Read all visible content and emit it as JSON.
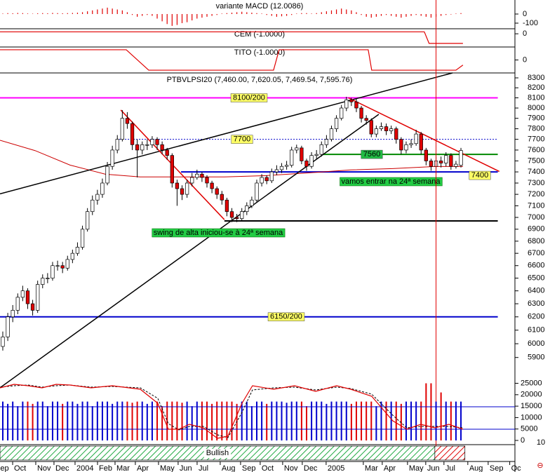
{
  "chart_data": [
    {
      "type": "bar",
      "title": "variante MACD (12.0086)",
      "color": "#e00000",
      "values": [
        5,
        10,
        8,
        12,
        10,
        6,
        4,
        8,
        10,
        8,
        12,
        10,
        8,
        10,
        12,
        15,
        20,
        30,
        40,
        50,
        60,
        70,
        60,
        50,
        40,
        20,
        -10,
        -30,
        -20,
        -10,
        -20,
        -50,
        -80,
        -110,
        -130,
        -120,
        -100,
        -90,
        -70,
        -50,
        -40,
        -30,
        -20,
        -10,
        5,
        10,
        15,
        20,
        25,
        20,
        15,
        10,
        5,
        -10,
        -20,
        -30,
        -25,
        -20,
        -10,
        5,
        10,
        10,
        5,
        10,
        20,
        30,
        40,
        50,
        60,
        50,
        40,
        20,
        -10,
        -30,
        -40,
        -30,
        -20,
        -10,
        -20,
        -30,
        -40,
        -30,
        -20,
        -10,
        -20,
        -30,
        -40,
        -30,
        -20,
        -10,
        -5,
        5,
        10
      ],
      "ylim": [
        -154,
        154
      ],
      "yticks": [
        0,
        -100
      ]
    },
    {
      "type": "line",
      "title": "CEM (-1.0000)",
      "color": "#e00000",
      "x": [
        -0.56,
        84.65,
        85.6,
        92.4
      ],
      "values": [
        0.2,
        0.2,
        -1,
        -1
      ],
      "ylim": [
        -1.3,
        0.45
      ],
      "yticks": [
        0
      ]
    },
    {
      "type": "line",
      "title": "TITO (-1.0000)",
      "color": "#e00000",
      "x": [
        -0.56,
        24.79,
        29.3,
        54.37,
        55.49,
        73.38,
        74.08,
        90.99,
        92.4
      ],
      "values": [
        1,
        1,
        -1,
        -1,
        1,
        1,
        -1,
        -1,
        -0.5
      ],
      "ylim": [
        -1.2,
        1.2
      ],
      "yticks": [
        0
      ]
    },
    {
      "type": "candlestick",
      "title": "PTBVLPSI20 (7,460.00, 7,620.05, 7,469.54, 7,595.76)",
      "up_color": "#ffffff",
      "down_color": "#e00000",
      "log_scale": true,
      "candles": [
        [
          5980,
          6090,
          5950,
          6050
        ],
        [
          6050,
          6230,
          6020,
          6200
        ],
        [
          6200,
          6290,
          6160,
          6250
        ],
        [
          6250,
          6380,
          6220,
          6350
        ],
        [
          6350,
          6440,
          6320,
          6400
        ],
        [
          6400,
          6420,
          6260,
          6300
        ],
        [
          6300,
          6330,
          6210,
          6250
        ],
        [
          6250,
          6480,
          6230,
          6450
        ],
        [
          6450,
          6530,
          6420,
          6500
        ],
        [
          6500,
          6540,
          6460,
          6500
        ],
        [
          6500,
          6630,
          6480,
          6600
        ],
        [
          6600,
          6640,
          6560,
          6600
        ],
        [
          6600,
          6630,
          6540,
          6580
        ],
        [
          6580,
          6680,
          6560,
          6650
        ],
        [
          6650,
          6730,
          6620,
          6700
        ],
        [
          6700,
          6790,
          6680,
          6750
        ],
        [
          6750,
          6930,
          6730,
          6900
        ],
        [
          6900,
          7080,
          6880,
          7050
        ],
        [
          7050,
          7190,
          7020,
          7150
        ],
        [
          7150,
          7240,
          7110,
          7200
        ],
        [
          7200,
          7340,
          7170,
          7300
        ],
        [
          7300,
          7490,
          7280,
          7450
        ],
        [
          7450,
          7640,
          7420,
          7600
        ],
        [
          7600,
          7740,
          7570,
          7700
        ],
        [
          7700,
          7980,
          7680,
          7900
        ],
        [
          7900,
          7960,
          7800,
          7850
        ],
        [
          7850,
          7870,
          7600,
          7650
        ],
        [
          7650,
          7700,
          7350,
          7600
        ],
        [
          7600,
          7680,
          7560,
          7650
        ],
        [
          7650,
          7700,
          7600,
          7650
        ],
        [
          7650,
          7730,
          7620,
          7700
        ],
        [
          7700,
          7720,
          7600,
          7650
        ],
        [
          7650,
          7680,
          7560,
          7600
        ],
        [
          7600,
          7620,
          7510,
          7550
        ],
        [
          7550,
          7570,
          7260,
          7300
        ],
        [
          7300,
          7330,
          7100,
          7250
        ],
        [
          7250,
          7280,
          7150,
          7200
        ],
        [
          7200,
          7330,
          7170,
          7300
        ],
        [
          7300,
          7390,
          7270,
          7350
        ],
        [
          7350,
          7420,
          7330,
          7380
        ],
        [
          7380,
          7400,
          7310,
          7350
        ],
        [
          7350,
          7370,
          7260,
          7300
        ],
        [
          7300,
          7320,
          7210,
          7250
        ],
        [
          7250,
          7270,
          7160,
          7200
        ],
        [
          7200,
          7230,
          7110,
          7150
        ],
        [
          7150,
          7170,
          7010,
          7050
        ],
        [
          7050,
          7080,
          6960,
          7000
        ],
        [
          7000,
          7030,
          6960,
          6990
        ],
        [
          6990,
          7080,
          6970,
          7050
        ],
        [
          7050,
          7130,
          7020,
          7100
        ],
        [
          7100,
          7180,
          7080,
          7150
        ],
        [
          7150,
          7330,
          7130,
          7300
        ],
        [
          7300,
          7380,
          7270,
          7350
        ],
        [
          7350,
          7370,
          7290,
          7320
        ],
        [
          7320,
          7430,
          7300,
          7400
        ],
        [
          7400,
          7460,
          7370,
          7420
        ],
        [
          7420,
          7480,
          7390,
          7450
        ],
        [
          7450,
          7500,
          7420,
          7460
        ],
        [
          7460,
          7630,
          7440,
          7600
        ],
        [
          7600,
          7650,
          7570,
          7620
        ],
        [
          7620,
          7640,
          7470,
          7500
        ],
        [
          7500,
          7520,
          7410,
          7450
        ],
        [
          7450,
          7580,
          7430,
          7550
        ],
        [
          7550,
          7600,
          7520,
          7560
        ],
        [
          7560,
          7680,
          7540,
          7650
        ],
        [
          7650,
          7740,
          7620,
          7700
        ],
        [
          7700,
          7830,
          7680,
          7800
        ],
        [
          7800,
          7930,
          7770,
          7900
        ],
        [
          7900,
          8030,
          7880,
          8000
        ],
        [
          8000,
          8110,
          7970,
          8080
        ],
        [
          8080,
          8100,
          8020,
          8060
        ],
        [
          8060,
          8090,
          7960,
          8000
        ],
        [
          8000,
          8020,
          7860,
          7900
        ],
        [
          7900,
          7930,
          7840,
          7880
        ],
        [
          7880,
          7900,
          7720,
          7750
        ],
        [
          7750,
          7830,
          7720,
          7800
        ],
        [
          7800,
          7860,
          7780,
          7820
        ],
        [
          7820,
          7850,
          7740,
          7780
        ],
        [
          7780,
          7830,
          7750,
          7800
        ],
        [
          7800,
          7820,
          7660,
          7700
        ],
        [
          7700,
          7720,
          7560,
          7600
        ],
        [
          7600,
          7680,
          7570,
          7650
        ],
        [
          7650,
          7700,
          7620,
          7660
        ],
        [
          7660,
          7790,
          7640,
          7750
        ],
        [
          7750,
          7770,
          7560,
          7600
        ],
        [
          7600,
          7620,
          7460,
          7500
        ],
        [
          7500,
          7520,
          7410,
          7450
        ],
        [
          7450,
          7540,
          7430,
          7500
        ],
        [
          7500,
          7540,
          7440,
          7480
        ],
        [
          7480,
          7580,
          7450,
          7550
        ],
        [
          7550,
          7570,
          7420,
          7450
        ],
        [
          7450,
          7500,
          7430,
          7470
        ],
        [
          7460,
          7620.05,
          7440,
          7595.76
        ]
      ],
      "ylim": [
        5700,
        8350
      ],
      "yticks": [
        5900,
        6000,
        6100,
        6200,
        6300,
        6400,
        6500,
        6600,
        6700,
        6800,
        6900,
        7000,
        7100,
        7200,
        7300,
        7400,
        7500,
        7600,
        7700,
        7800,
        7900,
        8000,
        8100,
        8200,
        8300
      ],
      "xlim": [
        -0.56,
        102.7
      ],
      "xticks": [
        {
          "value": -1.83,
          "label": "Sep"
        },
        {
          "value": 1.98,
          "label": "Oct"
        },
        {
          "value": 6.62,
          "label": "Nov"
        },
        {
          "value": 10.28,
          "label": "Dec"
        },
        {
          "value": 14.51,
          "label": "2004"
        },
        {
          "value": 19.02,
          "label": "Feb"
        },
        {
          "value": 22.54,
          "label": "Mar"
        },
        {
          "value": 26.62,
          "label": "Apr"
        },
        {
          "value": 31.27,
          "label": "May"
        },
        {
          "value": 35.21,
          "label": "Jun"
        },
        {
          "value": 39.02,
          "label": "Jul"
        },
        {
          "value": 43.66,
          "label": "Aug"
        },
        {
          "value": 47.75,
          "label": "Sep"
        },
        {
          "value": 51.69,
          "label": "Oct"
        },
        {
          "value": 56.2,
          "label": "Nov"
        },
        {
          "value": 60.14,
          "label": "Dec"
        },
        {
          "value": 64.93,
          "label": "2005"
        },
        {
          "value": 72.4,
          "label": "Mar"
        },
        {
          "value": 76.2,
          "label": "Apr"
        },
        {
          "value": 81.27,
          "label": "May"
        },
        {
          "value": 84.93,
          "label": "Jun"
        },
        {
          "value": 88.59,
          "label": "Jul"
        },
        {
          "value": 93.38,
          "label": "Aug"
        },
        {
          "value": 97.47,
          "label": "Sep"
        },
        {
          "value": 101.8,
          "label": "Oc"
        }
      ],
      "moving_average": {
        "color": "#cc0000",
        "x": [
          -0.56,
          6.48,
          13.5,
          20.6,
          27.6,
          36.1,
          44.5,
          53,
          61.4,
          69.9,
          78.3,
          86.8,
          92.4
        ],
        "values": [
          7691,
          7595,
          7462,
          7379,
          7355,
          7355,
          7355,
          7367,
          7391,
          7418,
          7430,
          7449,
          7449
        ]
      },
      "levels": [
        {
          "value": 8100,
          "label": "8100/200",
          "color": "#ff00ff",
          "box": "#ffff66",
          "x": [
            -0.56,
            99.4
          ]
        },
        {
          "value": 7700,
          "label": "7700",
          "color": "#0000cc",
          "box": "#ffff66",
          "dashed": true,
          "x": [
            23.4,
            99.4
          ]
        },
        {
          "value": 7560,
          "label": "7560",
          "color": "#008800",
          "box": "#22bb44",
          "x": [
            64.2,
            99.4
          ]
        },
        {
          "value": 7400,
          "label": "7400",
          "color": "#0000cc",
          "box": "#ffff66",
          "x": [
            35.8,
            99.4
          ]
        },
        {
          "value": 6970,
          "color": "#000000",
          "x": [
            44.5,
            99.4
          ]
        },
        {
          "value": 6200,
          "label": "6150/200",
          "color": "#0000cc",
          "box": "#ffff66",
          "x": [
            -0.56,
            99.4
          ]
        }
      ],
      "trendlines": [
        {
          "color": "#000000",
          "x": [
            -0.56,
            90.3
          ],
          "values": [
            7204,
            8350
          ]
        },
        {
          "color": "#000000",
          "x": [
            -0.56,
            75.5
          ],
          "values": [
            5686,
            7939
          ]
        },
        {
          "color": "#e00000",
          "x": [
            23.7,
            44.5
          ],
          "values": [
            7980,
            6981
          ]
        },
        {
          "color": "#e00000",
          "x": [
            69.4,
            99.7
          ],
          "values": [
            8100,
            7404
          ]
        }
      ],
      "annotations": [
        {
          "text": "swing de alta iniciou-se à 24ª semana"
        },
        {
          "text": "vamos entrar na 24ª semana"
        }
      ],
      "marker_x": 87.0
    },
    {
      "type": "volume",
      "up_color": "#0000cc",
      "down_color": "#e00000",
      "scale_label": "10",
      "values": [
        17000,
        16000,
        17000,
        15000,
        17000,
        17000,
        16000,
        17000,
        17000,
        15000,
        17000,
        17000,
        16000,
        17000,
        17000,
        16000,
        17000,
        17000,
        15000,
        17000,
        17000,
        17000,
        16000,
        17000,
        17000,
        17000,
        16500,
        17000,
        17000,
        16000,
        17000,
        17000,
        15000,
        17000,
        17000,
        17000,
        16500,
        17000,
        15000,
        17000,
        17000,
        17000,
        16000,
        17000,
        17000,
        17000,
        17000,
        16000,
        17000,
        17000,
        15000,
        17000,
        17000,
        16000,
        17000,
        17000,
        17000,
        16500,
        17000,
        17000,
        17000,
        15000,
        17000,
        17000,
        17000,
        16000,
        17000,
        17000,
        17000,
        17000,
        16000,
        17000,
        17000,
        17000,
        17000,
        15000,
        17000,
        17000,
        17000,
        17000,
        16000,
        17000,
        17000,
        17000,
        17000,
        25000,
        25000,
        17000,
        21000,
        17000,
        17000,
        17000,
        17000
      ],
      "ylim": [
        0,
        27000
      ],
      "yticks": [
        0,
        5000,
        10000,
        15000,
        20000,
        25000
      ],
      "oscillator": {
        "color": "#e00000",
        "signal_color": "#000000",
        "level_color": "#0000cc",
        "lim": [
          0,
          100
        ],
        "levels": [
          20,
          60
        ],
        "x": [
          -0.56,
          2.26,
          5.07,
          7.89,
          10.71,
          13.52,
          17.75,
          21.97,
          27.61,
          31.13,
          33.24,
          35.36,
          37.47,
          40.28,
          43.1,
          45.21,
          48.03,
          50.14,
          54.37,
          58.59,
          62.82,
          67.04,
          69.86,
          74.08,
          78.31,
          81.13,
          83.94,
          86.76,
          89.58,
          92.4
        ],
        "values": [
          93.75,
          100,
          97.5,
          93.75,
          100,
          98.75,
          93.75,
          97.5,
          91.25,
          66.25,
          20,
          20,
          28.75,
          22.5,
          3.75,
          7.5,
          66.25,
          97.5,
          91.25,
          97.5,
          87.5,
          97.5,
          91.25,
          78.75,
          35,
          20,
          28.75,
          22.5,
          28.75,
          20
        ],
        "signal": [
          95,
          97.5,
          98.75,
          95,
          97.5,
          98.75,
          95,
          96.25,
          93.75,
          75,
          30,
          18.75,
          25,
          25,
          10,
          5,
          50,
          90,
          93.75,
          95,
          90,
          95,
          92.5,
          82.5,
          45,
          22.5,
          25,
          25,
          25,
          22.5
        ]
      }
    },
    {
      "type": "signal-strip",
      "segments": [
        {
          "label": "Bullish",
          "pattern": "green",
          "x": [
            -0.56,
            86.76
          ]
        },
        {
          "pattern": "red",
          "x": [
            86.76,
            92.8
          ]
        }
      ]
    }
  ]
}
